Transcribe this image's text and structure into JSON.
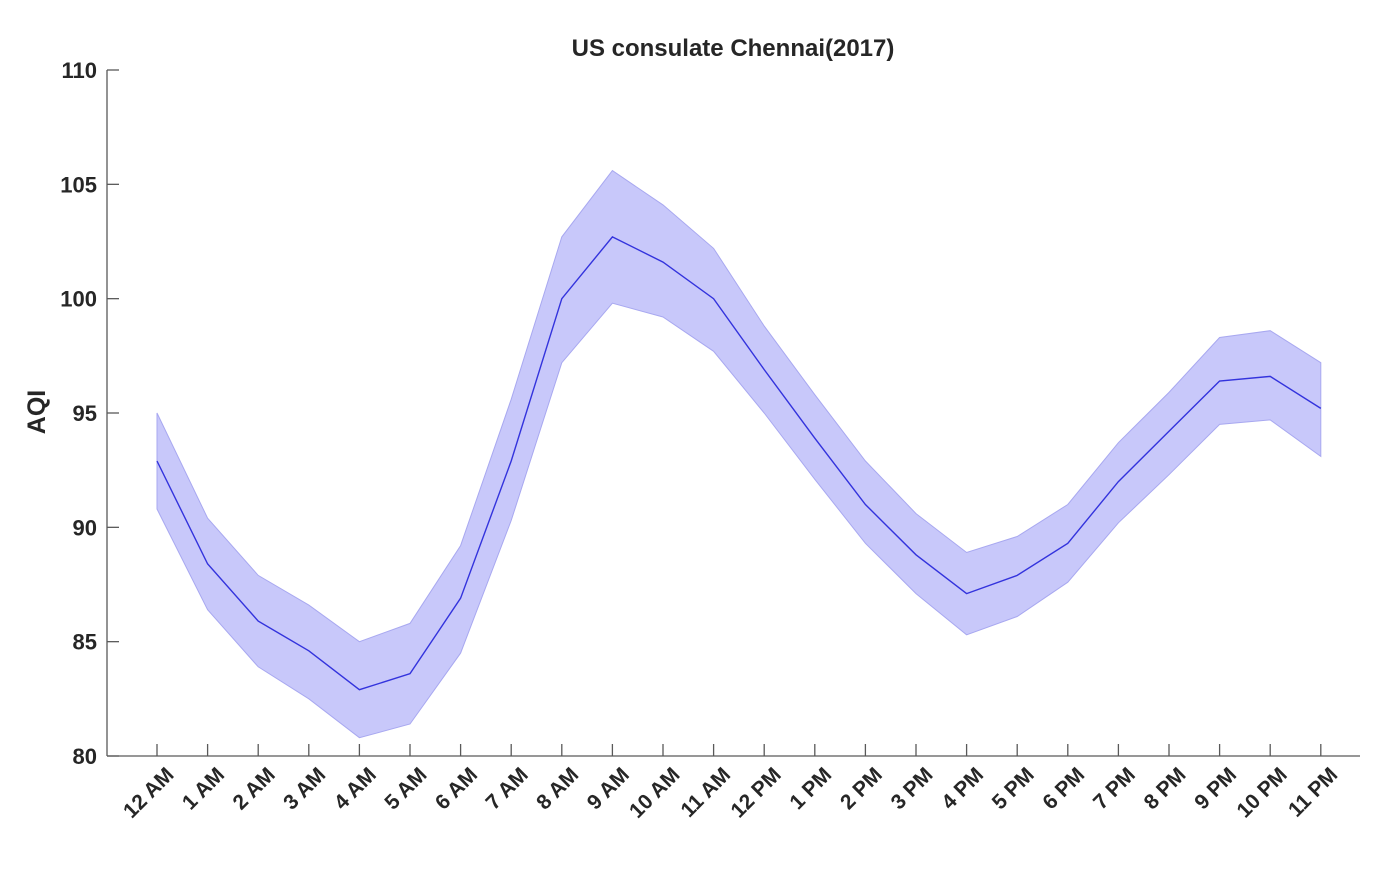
{
  "chart_data": {
    "type": "area",
    "title": "US consulate Chennai(2017)",
    "xlabel": "",
    "ylabel": "AQI",
    "ylim": [
      80,
      110
    ],
    "yticks": [
      80,
      85,
      90,
      95,
      100,
      105,
      110
    ],
    "grid": false,
    "categories": [
      "12 AM",
      "1 AM",
      "2 AM",
      "3 AM",
      "4 AM",
      "5 AM",
      "6 AM",
      "7 AM",
      "8 AM",
      "9 AM",
      "10 AM",
      "11 AM",
      "12 PM",
      "1 PM",
      "2 PM",
      "3 PM",
      "4 PM",
      "5 PM",
      "6 PM",
      "7 PM",
      "8 PM",
      "9 PM",
      "10 PM",
      "11 PM"
    ],
    "series": [
      {
        "values": [
          92.9,
          88.4,
          85.9,
          84.6,
          82.9,
          83.6,
          86.9,
          92.9,
          100.0,
          102.7,
          101.6,
          100.0,
          96.9,
          93.9,
          91.0,
          88.8,
          87.1,
          87.9,
          89.3,
          92.0,
          94.2,
          96.4,
          96.6,
          95.2
        ],
        "upper": [
          95.0,
          90.4,
          87.9,
          86.6,
          85.0,
          85.8,
          89.2,
          95.6,
          102.7,
          105.6,
          104.1,
          102.2,
          98.8,
          95.8,
          92.9,
          90.6,
          88.9,
          89.6,
          91.0,
          93.7,
          95.9,
          98.3,
          98.6,
          97.2
        ],
        "lower": [
          90.8,
          86.4,
          83.9,
          82.5,
          80.8,
          81.4,
          84.5,
          90.3,
          97.2,
          99.8,
          99.2,
          97.7,
          95.0,
          92.1,
          89.3,
          87.1,
          85.3,
          86.1,
          87.6,
          90.2,
          92.3,
          94.5,
          94.7,
          93.1
        ]
      }
    ],
    "colors": {
      "line": "#3333dd",
      "band": "#c8c8fa",
      "band_edge": "#a8a8f0",
      "axis": "#595959"
    }
  }
}
